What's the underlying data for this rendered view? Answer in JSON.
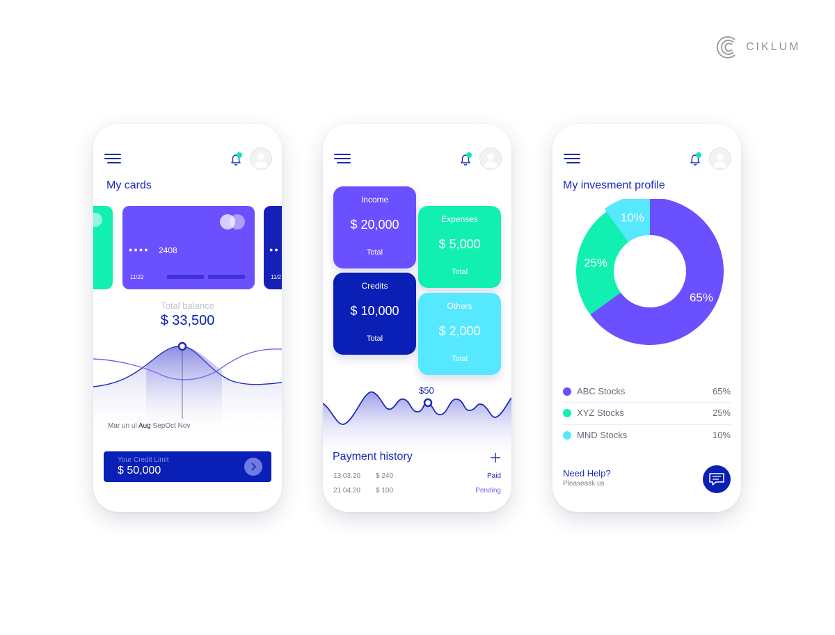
{
  "brand": {
    "name": "CIKLUM",
    "logo_icon": "ciklum-c-logo"
  },
  "colors": {
    "navy": "#0a1fb5",
    "purple": "#6a50ff",
    "green": "#11f0b0",
    "cyan": "#55e8ff",
    "notify": "#14e6b2"
  },
  "screen1": {
    "title": "My cards",
    "card": {
      "dots": "●●●●",
      "last4": "2408",
      "expiry": "11/22",
      "right_dots": "●●",
      "right_expiry": "11/2"
    },
    "balance_label": "Total balance",
    "balance_value": "$ 33,500",
    "months": [
      "Mar",
      "un",
      "ul",
      "Aug",
      "Sep",
      "Oct",
      "Nov"
    ],
    "credit_label": "Your Credit Limit",
    "credit_value": "$ 50,000"
  },
  "screen2": {
    "tiles": [
      {
        "label": "Income",
        "value": "$ 20,000",
        "total": "Total"
      },
      {
        "label": "Expenses",
        "value": "$ 5,000",
        "total": "Total"
      },
      {
        "label": "Credits",
        "value": "$ 10,000",
        "total": "Total"
      },
      {
        "label": "Others",
        "value": "$ 2,000",
        "total": "Total"
      }
    ],
    "marker_value": "$50",
    "payment_title": "Payment history",
    "payments": [
      {
        "date": "13.03.20",
        "amount": "$ 240",
        "status": "Paid"
      },
      {
        "date": "21.04.20",
        "amount": "$ 100",
        "status": "Pending"
      }
    ]
  },
  "screen3": {
    "title": "My invesment profile",
    "legend": [
      {
        "name": "ABC Stocks",
        "pct": "65%",
        "color": "#6a50ff"
      },
      {
        "name": "XYZ Stocks",
        "pct": "25%",
        "color": "#11f0b0"
      },
      {
        "name": "MND Stocks",
        "pct": "10%",
        "color": "#55e8ff"
      }
    ],
    "help_title": "Need Help?",
    "help_sub": "Pleaseask us"
  },
  "chart_data": {
    "type": "pie",
    "categories": [
      "ABC Stocks",
      "XYZ Stocks",
      "MND Stocks"
    ],
    "values": [
      65,
      25,
      10
    ],
    "labels": [
      "65%",
      "25%",
      "10%"
    ]
  }
}
